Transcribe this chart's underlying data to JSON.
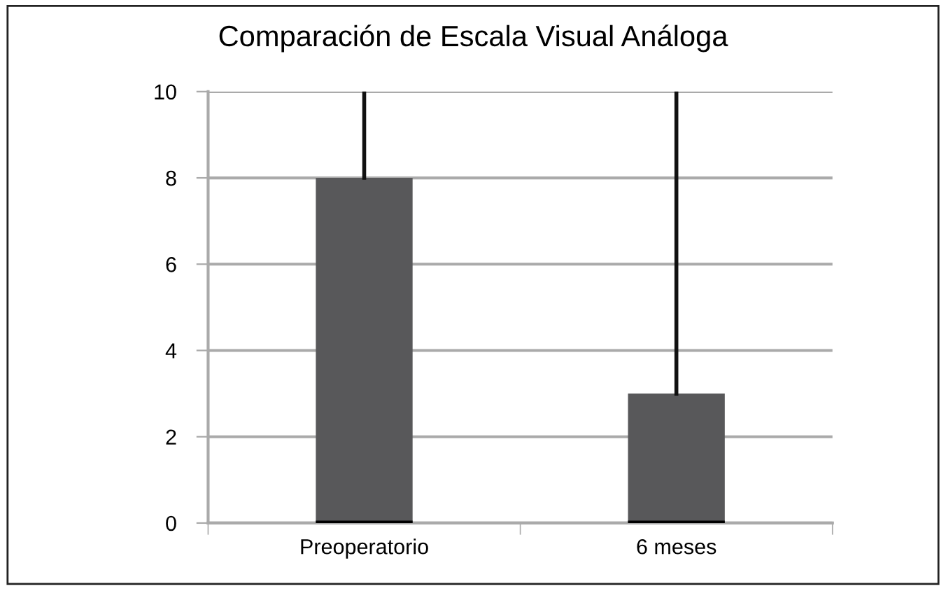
{
  "chart_data": {
    "type": "box",
    "title": "Comparación de Escala Visual Análoga",
    "categories": [
      "Preoperatorio",
      "6 meses"
    ],
    "boxes": [
      {
        "low": 0,
        "q1": 0,
        "median": 0,
        "q3": 8,
        "high": 10
      },
      {
        "low": 0,
        "q1": 0,
        "median": 0,
        "q3": 3,
        "high": 10
      }
    ],
    "color": "#58585a",
    "ylim": [
      0,
      10
    ],
    "yticks": [
      0,
      2,
      4,
      6,
      8,
      10
    ],
    "grid": "y",
    "legend": false
  }
}
